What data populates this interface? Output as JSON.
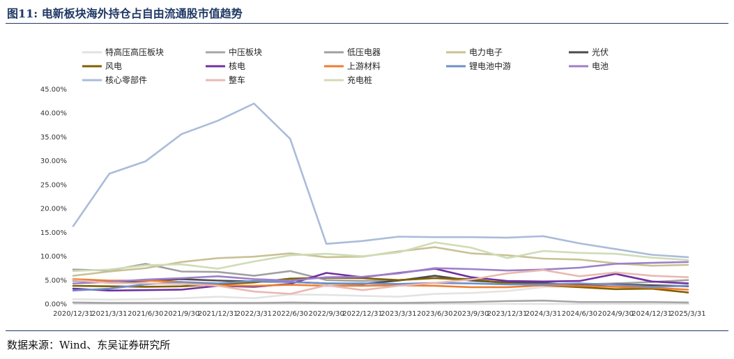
{
  "header": {
    "title": "图11:  电新板块海外持仓占自由流通股市值趋势"
  },
  "footer": {
    "source": "数据来源：Wind、东吴证券研究所"
  },
  "chart_data": {
    "type": "line",
    "title": "",
    "xlabel": "",
    "ylabel": "",
    "ylim": [
      0,
      45
    ],
    "yticks": [
      0,
      5,
      10,
      15,
      20,
      25,
      30,
      35,
      40,
      45
    ],
    "ytick_labels": [
      "0.00%",
      "5.00%",
      "10.00%",
      "15.00%",
      "20.00%",
      "25.00%",
      "30.00%",
      "35.00%",
      "40.00%",
      "45.00%"
    ],
    "grid": false,
    "legend_position": "top",
    "categories": [
      "2020/12/31",
      "2021/3/31",
      "2021/6/30",
      "2021/9/30",
      "2021/12/31",
      "2022/3/31",
      "2022/6/30",
      "2022/9/30",
      "2022/12/31",
      "2023/3/31",
      "2023/6/30",
      "2023/9/30",
      "2023/12/31",
      "2024/3/31",
      "2024/6/30",
      "2024/9/30",
      "2024/12/31",
      "2025/3/31"
    ],
    "series": [
      {
        "name": "特高压高压板块",
        "color": "#e3e3e3",
        "values": [
          1.0,
          0.9,
          1.0,
          1.2,
          1.5,
          1.2,
          2.0,
          1.9,
          1.7,
          1.5,
          2.1,
          2.3,
          2.7,
          3.5,
          3.8,
          4.0,
          4.0,
          3.9
        ]
      },
      {
        "name": "中压板块",
        "color": "#a6a6a6",
        "values": [
          0.3,
          0.2,
          0.2,
          0.2,
          0.2,
          0.2,
          0.3,
          0.2,
          0.2,
          0.2,
          0.3,
          0.4,
          0.6,
          0.7,
          0.4,
          0.4,
          0.4,
          0.3
        ]
      },
      {
        "name": "低压电器",
        "color": "#a0a0a0",
        "values": [
          7.2,
          7.0,
          8.4,
          6.8,
          6.7,
          5.9,
          6.9,
          5.0,
          4.8,
          5.0,
          5.4,
          4.9,
          4.4,
          4.1,
          4.1,
          4.3,
          4.6,
          5.0
        ]
      },
      {
        "name": "电力电子",
        "color": "#c8c295",
        "values": [
          5.9,
          6.8,
          7.5,
          8.8,
          9.6,
          9.9,
          10.6,
          9.8,
          9.9,
          11.0,
          11.9,
          10.6,
          10.2,
          9.5,
          9.3,
          8.5,
          8.0,
          8.2
        ]
      },
      {
        "name": "光伏",
        "color": "#4a4a4a",
        "values": [
          4.9,
          4.5,
          4.8,
          5.2,
          4.9,
          4.7,
          4.6,
          4.3,
          4.2,
          4.9,
          5.9,
          4.9,
          4.5,
          4.4,
          3.9,
          4.1,
          3.9,
          3.7
        ]
      },
      {
        "name": "风电",
        "color": "#7f6000",
        "values": [
          3.8,
          3.7,
          3.6,
          3.7,
          4.1,
          4.5,
          5.3,
          5.5,
          5.4,
          5.0,
          5.4,
          5.2,
          4.3,
          3.9,
          3.5,
          3.1,
          3.2,
          2.4
        ]
      },
      {
        "name": "核电",
        "color": "#7030a0",
        "values": [
          3.2,
          2.8,
          2.9,
          3.0,
          3.8,
          3.6,
          4.2,
          6.5,
          5.6,
          6.5,
          7.4,
          5.6,
          4.8,
          4.7,
          4.8,
          6.3,
          4.7,
          4.3
        ]
      },
      {
        "name": "上游材料",
        "color": "#ed7d31",
        "values": [
          5.2,
          4.9,
          4.9,
          4.6,
          3.9,
          3.8,
          4.0,
          3.8,
          3.8,
          3.9,
          3.8,
          3.5,
          3.5,
          3.9,
          3.8,
          3.6,
          3.4,
          3.0
        ]
      },
      {
        "name": "锂电池中游",
        "color": "#6f8fc8",
        "values": [
          2.8,
          3.2,
          4.1,
          4.6,
          4.3,
          4.8,
          4.6,
          4.3,
          4.3,
          4.2,
          4.4,
          4.3,
          4.1,
          4.1,
          4.3,
          4.0,
          3.6,
          3.8
        ]
      },
      {
        "name": "电池",
        "color": "#9e7fc7",
        "values": [
          4.3,
          4.6,
          5.1,
          5.4,
          5.8,
          5.2,
          4.9,
          5.6,
          5.7,
          6.4,
          7.5,
          7.3,
          7.0,
          7.2,
          7.6,
          8.4,
          8.6,
          8.8
        ]
      },
      {
        "name": "核心零部件",
        "color": "#a9bcd9",
        "values": [
          16.3,
          27.3,
          29.9,
          35.6,
          38.4,
          42.0,
          34.6,
          12.6,
          13.2,
          14.1,
          14.0,
          14.0,
          13.9,
          14.2,
          12.7,
          11.5,
          10.3,
          9.8
        ]
      },
      {
        "name": "整车",
        "color": "#e9b9b1",
        "values": [
          5.0,
          4.4,
          4.3,
          4.2,
          3.8,
          2.6,
          2.1,
          3.9,
          2.9,
          3.8,
          4.4,
          5.1,
          6.4,
          7.1,
          5.8,
          6.6,
          5.9,
          5.6
        ]
      },
      {
        "name": "充电桩",
        "color": "#cfdcb6",
        "values": [
          6.9,
          7.2,
          8.1,
          8.3,
          7.4,
          8.9,
          10.2,
          10.5,
          10.0,
          10.8,
          12.9,
          11.8,
          9.6,
          11.1,
          10.7,
          10.5,
          9.7,
          9.2
        ]
      }
    ]
  }
}
